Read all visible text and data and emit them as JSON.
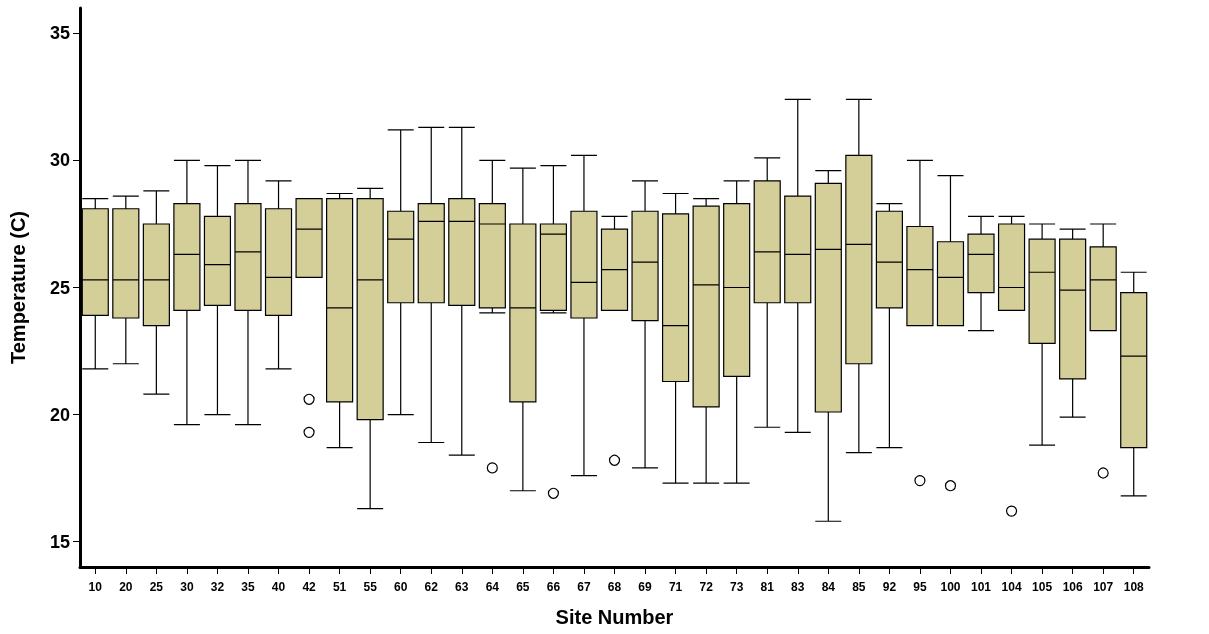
{
  "chart_data": {
    "type": "box",
    "xlabel": "Site Number",
    "ylabel": "Temperature (C)",
    "categories": [
      "10",
      "20",
      "25",
      "30",
      "32",
      "35",
      "40",
      "42",
      "51",
      "55",
      "60",
      "62",
      "63",
      "64",
      "65",
      "66",
      "67",
      "68",
      "69",
      "71",
      "72",
      "73",
      "81",
      "83",
      "84",
      "85",
      "92",
      "95",
      "100",
      "101",
      "104",
      "105",
      "106",
      "107",
      "108"
    ],
    "ylim": [
      14,
      36
    ],
    "yticks": [
      15,
      20,
      25,
      30,
      35
    ],
    "grid": false,
    "series": [
      {
        "color": "#d4cf98",
        "boxes": [
          {
            "low": 21.8,
            "q1": 23.9,
            "median": 25.3,
            "q3": 28.1,
            "high": 28.5
          },
          {
            "low": 22.0,
            "q1": 23.8,
            "median": 25.3,
            "q3": 28.1,
            "high": 28.6
          },
          {
            "low": 20.8,
            "q1": 23.5,
            "median": 25.3,
            "q3": 27.5,
            "high": 28.8
          },
          {
            "low": 19.6,
            "q1": 24.1,
            "median": 26.3,
            "q3": 28.3,
            "high": 30.0
          },
          {
            "low": 20.0,
            "q1": 24.3,
            "median": 25.9,
            "q3": 27.8,
            "high": 29.8
          },
          {
            "low": 19.6,
            "q1": 24.1,
            "median": 26.4,
            "q3": 28.3,
            "high": 30.0
          },
          {
            "low": 21.8,
            "q1": 23.9,
            "median": 25.4,
            "q3": 28.1,
            "high": 29.2
          },
          {
            "low": 25.4,
            "q1": 25.4,
            "median": 27.3,
            "q3": 28.5,
            "high": 28.5,
            "outliers": [
              20.6,
              19.3
            ]
          },
          {
            "low": 18.7,
            "q1": 20.5,
            "median": 24.2,
            "q3": 28.5,
            "high": 28.7
          },
          {
            "low": 16.3,
            "q1": 19.8,
            "median": 25.3,
            "q3": 28.5,
            "high": 28.9
          },
          {
            "low": 20.0,
            "q1": 24.4,
            "median": 26.9,
            "q3": 28.0,
            "high": 31.2
          },
          {
            "low": 18.9,
            "q1": 24.4,
            "median": 27.6,
            "q3": 28.3,
            "high": 31.3
          },
          {
            "low": 18.4,
            "q1": 24.3,
            "median": 27.6,
            "q3": 28.5,
            "high": 31.3
          },
          {
            "low": 24.0,
            "q1": 24.2,
            "median": 27.5,
            "q3": 28.3,
            "high": 30.0,
            "outliers": [
              17.9
            ]
          },
          {
            "low": 17.0,
            "q1": 20.5,
            "median": 24.2,
            "q3": 27.5,
            "high": 29.7
          },
          {
            "low": 24.0,
            "q1": 24.1,
            "median": 27.1,
            "q3": 27.5,
            "high": 29.8,
            "outliers": [
              16.9
            ]
          },
          {
            "low": 17.6,
            "q1": 23.8,
            "median": 25.2,
            "q3": 28.0,
            "high": 30.2
          },
          {
            "low": 24.1,
            "q1": 24.1,
            "median": 25.7,
            "q3": 27.3,
            "high": 27.8,
            "outliers": [
              18.2
            ]
          },
          {
            "low": 17.9,
            "q1": 23.7,
            "median": 26.0,
            "q3": 28.0,
            "high": 29.2
          },
          {
            "low": 17.3,
            "q1": 21.3,
            "median": 23.5,
            "q3": 27.9,
            "high": 28.7
          },
          {
            "low": 17.3,
            "q1": 20.3,
            "median": 25.1,
            "q3": 28.2,
            "high": 28.5
          },
          {
            "low": 17.3,
            "q1": 21.5,
            "median": 25.0,
            "q3": 28.3,
            "high": 29.2
          },
          {
            "low": 19.5,
            "q1": 24.4,
            "median": 26.4,
            "q3": 29.2,
            "high": 30.1
          },
          {
            "low": 19.3,
            "q1": 24.4,
            "median": 26.3,
            "q3": 28.6,
            "high": 32.4
          },
          {
            "low": 15.8,
            "q1": 20.1,
            "median": 26.5,
            "q3": 29.1,
            "high": 29.6
          },
          {
            "low": 18.5,
            "q1": 22.0,
            "median": 26.7,
            "q3": 30.2,
            "high": 32.4
          },
          {
            "low": 18.7,
            "q1": 24.2,
            "median": 26.0,
            "q3": 28.0,
            "high": 28.3
          },
          {
            "low": 23.5,
            "q1": 23.5,
            "median": 25.7,
            "q3": 27.4,
            "high": 30.0,
            "outliers": [
              17.4
            ]
          },
          {
            "low": 23.5,
            "q1": 23.5,
            "median": 25.4,
            "q3": 26.8,
            "high": 29.4,
            "outliers": [
              17.2
            ]
          },
          {
            "low": 23.3,
            "q1": 24.8,
            "median": 26.3,
            "q3": 27.1,
            "high": 27.8
          },
          {
            "low": 24.1,
            "q1": 24.1,
            "median": 25.0,
            "q3": 27.5,
            "high": 27.8,
            "outliers": [
              16.2
            ]
          },
          {
            "low": 18.8,
            "q1": 22.8,
            "median": 25.6,
            "q3": 26.9,
            "high": 27.5
          },
          {
            "low": 19.9,
            "q1": 21.4,
            "median": 24.9,
            "q3": 26.9,
            "high": 27.3
          },
          {
            "low": 23.3,
            "q1": 23.3,
            "median": 25.3,
            "q3": 26.6,
            "high": 27.5,
            "outliers": [
              17.7
            ]
          },
          {
            "low": 16.8,
            "q1": 18.7,
            "median": 22.3,
            "q3": 24.8,
            "high": 25.6
          }
        ]
      }
    ]
  }
}
